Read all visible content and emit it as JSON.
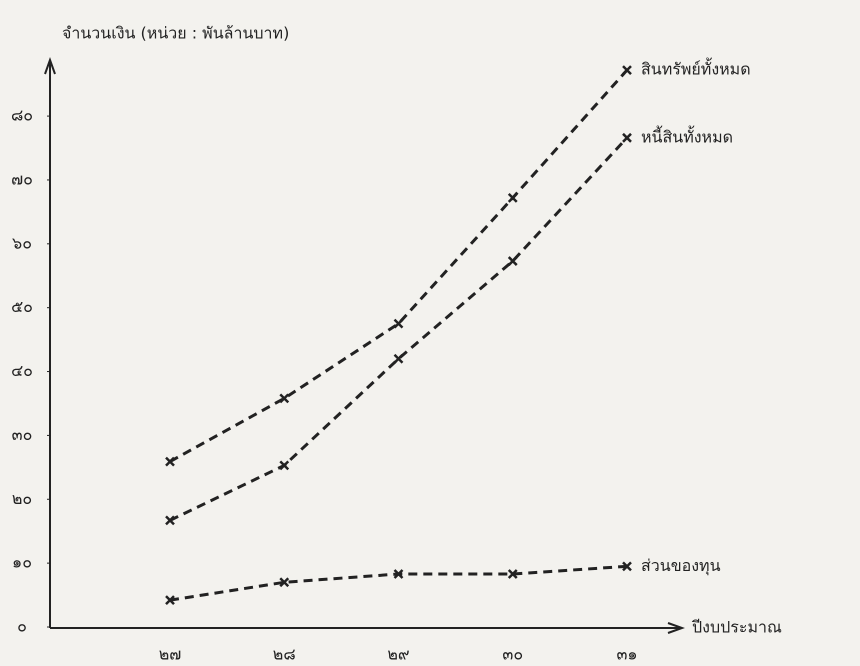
{
  "chart_data": {
    "type": "line",
    "y_label": "จำนวนเงิน (หน่วย : พันล้านบาท)",
    "x_label": "ปีงบประมาณ",
    "categories": [
      "๒๗",
      "๒๘",
      "๒๙",
      "๓๐",
      "๓๑"
    ],
    "series": [
      {
        "name": "สินทรัพย์ทั้งหมด",
        "color": "#222222",
        "values": [
          25.9,
          35.8,
          47.5,
          67.2,
          87.2
        ]
      },
      {
        "name": "หนี้สินทั้งหมด",
        "color": "#222222",
        "values": [
          16.7,
          25.3,
          42.0,
          57.3,
          76.6
        ]
      },
      {
        "name": "ส่วนของทุน",
        "color": "#222222",
        "values": [
          4.2,
          7.0,
          8.3,
          8.3,
          9.5
        ]
      }
    ],
    "ylim": [
      0,
      88
    ],
    "yticks": [
      {
        "value": 0,
        "label": "๐"
      },
      {
        "value": 10,
        "label": "๑๐"
      },
      {
        "value": 20,
        "label": "๒๐"
      },
      {
        "value": 30,
        "label": "๓๐"
      },
      {
        "value": 40,
        "label": "๔๐"
      },
      {
        "value": 50,
        "label": "๕๐"
      },
      {
        "value": 60,
        "label": "๖๐"
      },
      {
        "value": 70,
        "label": "๗๐"
      },
      {
        "value": 80,
        "label": "๘๐"
      }
    ],
    "grid": false
  }
}
